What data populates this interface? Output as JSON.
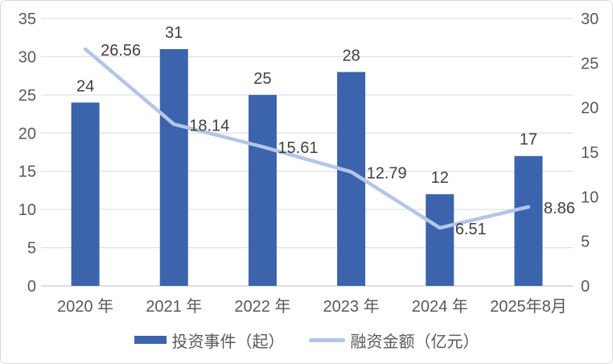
{
  "chart_data": {
    "type": "combo-bar-line",
    "title": "",
    "categories": [
      "2020 年",
      "2021 年",
      "2022 年",
      "2023 年",
      "2024 年",
      "2025年8月"
    ],
    "series": [
      {
        "name": "投资事件（起）",
        "type": "bar",
        "axis": "left",
        "color": "#3B64AD",
        "values": [
          24,
          31,
          25,
          28,
          12,
          17
        ],
        "labels": [
          "24",
          "31",
          "25",
          "28",
          "12",
          "17"
        ]
      },
      {
        "name": "融资金额（亿元）",
        "type": "line",
        "axis": "right",
        "color": "#B3C6E7",
        "values": [
          26.56,
          18.14,
          15.61,
          12.79,
          6.51,
          8.86
        ],
        "labels": [
          "26.56",
          "18.14",
          "15.61",
          "12.79",
          "6.51",
          "8.86"
        ]
      }
    ],
    "left_axis": {
      "min": 0,
      "max": 35,
      "step": 5,
      "ticks": [
        "0",
        "5",
        "10",
        "15",
        "20",
        "25",
        "30",
        "35"
      ]
    },
    "right_axis": {
      "min": 0,
      "max": 30,
      "step": 5,
      "ticks": [
        "0",
        "5",
        "10",
        "15",
        "20",
        "25",
        "30"
      ]
    },
    "grid": true,
    "legend_position": "bottom",
    "colors": {
      "gridline": "#D9D9D9",
      "axis_line": "#BFBFBF",
      "tick_text": "#595959",
      "data_label_text": "#404040",
      "category_text": "#595959"
    }
  }
}
